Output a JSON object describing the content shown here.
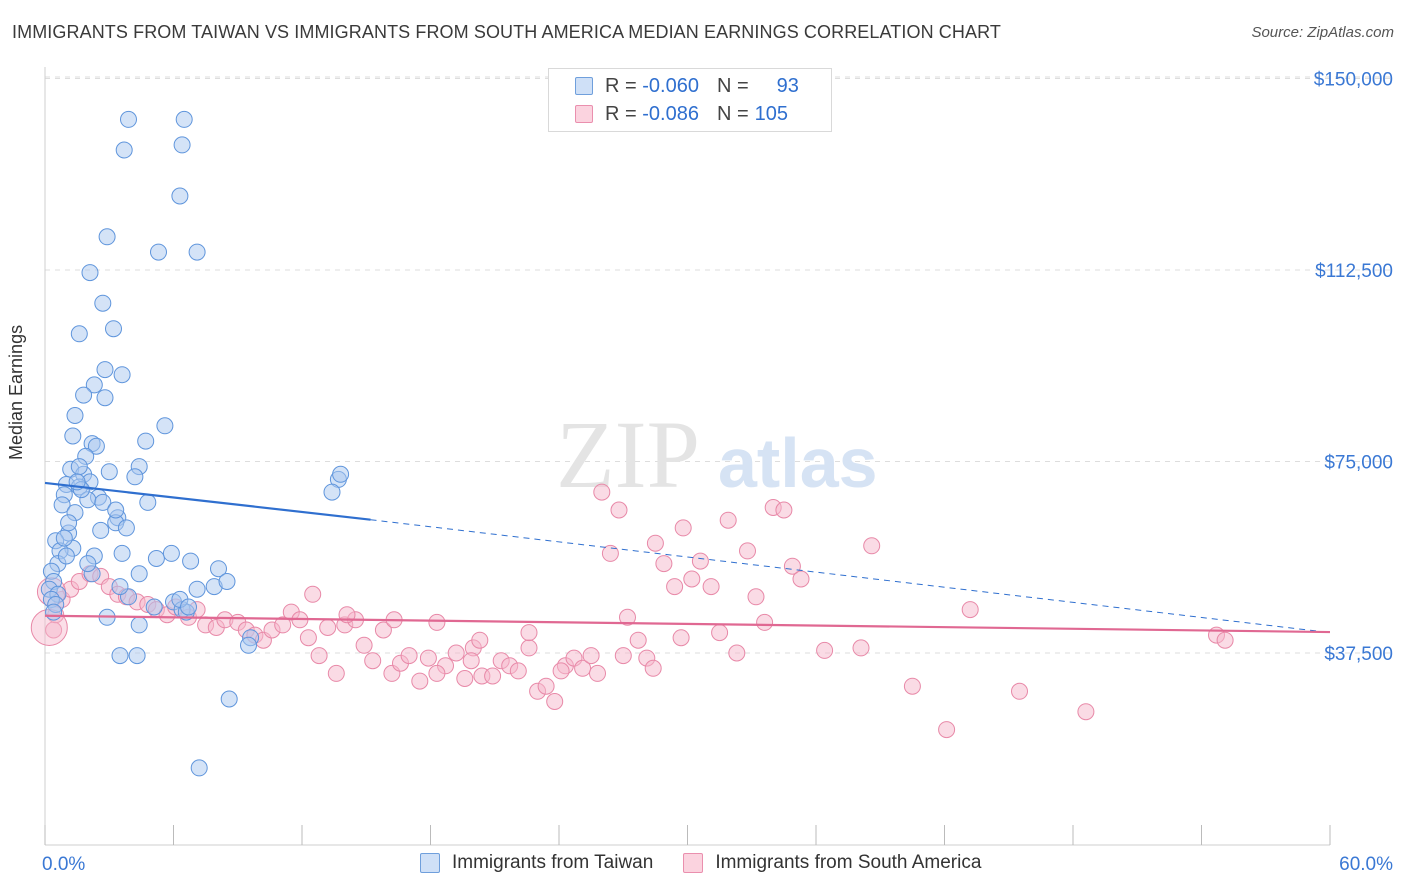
{
  "header": {
    "title": "IMMIGRANTS FROM TAIWAN VS IMMIGRANTS FROM SOUTH AMERICA MEDIAN EARNINGS CORRELATION CHART",
    "source": "Source: ZipAtlas.com"
  },
  "legend": {
    "rows": [
      {
        "r_label": "R =",
        "r_value": "-0.060",
        "n_label": "N =",
        "n_value": "93",
        "color": "#a9c8f0"
      },
      {
        "r_label": "R =",
        "r_value": "-0.086",
        "n_label": "N =",
        "n_value": "105",
        "color": "#f6b8cb"
      }
    ]
  },
  "watermark": {
    "zip": "ZIP",
    "atlas": "atlas"
  },
  "colors": {
    "taiwan_fill": "#a9c8f0",
    "taiwan_stroke": "#5f95dc",
    "taiwan_line": "#2f6fcf",
    "sa_fill": "#f6b8cb",
    "sa_stroke": "#e889a8",
    "sa_line": "#e06892",
    "axis_text": "#3a78d4"
  },
  "chart_data": {
    "type": "scatter",
    "title": "IMMIGRANTS FROM TAIWAN VS IMMIGRANTS FROM SOUTH AMERICA MEDIAN EARNINGS CORRELATION CHART",
    "xlabel": "",
    "ylabel": "Median Earnings",
    "xlim": [
      0,
      60
    ],
    "ylim": [
      0,
      155000
    ],
    "x_tick_labels": [
      "0.0%",
      "60.0%"
    ],
    "y_ticks": [
      37500,
      75000,
      112500,
      150000
    ],
    "y_tick_labels": [
      "$37,500",
      "$75,000",
      "$112,500",
      "$150,000"
    ],
    "grid": true,
    "series": [
      {
        "name": "Immigrants from Taiwan",
        "r": -0.06,
        "n": 93,
        "trend": {
          "x0": 0,
          "y0": 70800,
          "x1": 15.2,
          "y1": 63600,
          "dash_to_x": 60,
          "dash_to_y": 41500
        },
        "points": [
          [
            3.9,
            142000
          ],
          [
            6.4,
            137000
          ],
          [
            6.5,
            142000
          ],
          [
            3.7,
            136000
          ],
          [
            6.3,
            127000
          ],
          [
            2.9,
            119000
          ],
          [
            5.3,
            116000
          ],
          [
            7.1,
            116000
          ],
          [
            2.1,
            112000
          ],
          [
            2.7,
            106000
          ],
          [
            3.2,
            101000
          ],
          [
            1.6,
            100000
          ],
          [
            2.8,
            93000
          ],
          [
            3.6,
            92000
          ],
          [
            2.3,
            90000
          ],
          [
            1.8,
            88000
          ],
          [
            2.8,
            87500
          ],
          [
            1.4,
            84000
          ],
          [
            5.6,
            82000
          ],
          [
            1.3,
            80000
          ],
          [
            2.2,
            78500
          ],
          [
            2.4,
            78000
          ],
          [
            4.7,
            79000
          ],
          [
            1.9,
            76000
          ],
          [
            4.4,
            74000
          ],
          [
            3.0,
            73000
          ],
          [
            1.2,
            73500
          ],
          [
            1.8,
            72500
          ],
          [
            2.1,
            71000
          ],
          [
            1.0,
            70500
          ],
          [
            1.6,
            70000
          ],
          [
            0.9,
            68500
          ],
          [
            2.5,
            68000
          ],
          [
            2.0,
            67500
          ],
          [
            0.8,
            66500
          ],
          [
            4.8,
            67000
          ],
          [
            1.4,
            65000
          ],
          [
            3.4,
            64000
          ],
          [
            3.3,
            63000
          ],
          [
            3.8,
            62000
          ],
          [
            2.6,
            61500
          ],
          [
            1.1,
            61000
          ],
          [
            0.5,
            59500
          ],
          [
            1.3,
            58000
          ],
          [
            0.7,
            57500
          ],
          [
            2.3,
            56500
          ],
          [
            5.2,
            56000
          ],
          [
            6.8,
            55500
          ],
          [
            0.6,
            55000
          ],
          [
            8.1,
            54000
          ],
          [
            0.3,
            53500
          ],
          [
            4.4,
            53000
          ],
          [
            0.4,
            51500
          ],
          [
            7.9,
            50500
          ],
          [
            0.2,
            50000
          ],
          [
            0.6,
            49000
          ],
          [
            3.9,
            48500
          ],
          [
            0.3,
            48000
          ],
          [
            7.1,
            50000
          ],
          [
            6.0,
            47500
          ],
          [
            6.4,
            46000
          ],
          [
            6.6,
            45500
          ],
          [
            2.9,
            44500
          ],
          [
            4.4,
            43000
          ],
          [
            9.6,
            40500
          ],
          [
            3.5,
            37000
          ],
          [
            4.3,
            37000
          ],
          [
            9.5,
            39000
          ],
          [
            8.6,
            28500
          ],
          [
            7.2,
            15000
          ],
          [
            13.7,
            71500
          ],
          [
            13.4,
            69000
          ],
          [
            13.8,
            72500
          ],
          [
            1.0,
            56500
          ],
          [
            0.5,
            47000
          ],
          [
            2.2,
            53000
          ],
          [
            3.5,
            50500
          ],
          [
            5.1,
            46500
          ],
          [
            8.5,
            51500
          ],
          [
            1.6,
            74000
          ],
          [
            6.3,
            48000
          ],
          [
            1.1,
            63000
          ],
          [
            2.7,
            67000
          ],
          [
            0.9,
            60000
          ],
          [
            4.2,
            72000
          ],
          [
            1.7,
            69500
          ],
          [
            3.3,
            65500
          ],
          [
            0.4,
            45500
          ],
          [
            2.0,
            55000
          ],
          [
            5.9,
            57000
          ],
          [
            1.5,
            71000
          ],
          [
            6.7,
            46500
          ],
          [
            3.6,
            57000
          ]
        ]
      },
      {
        "name": "Immigrants from South America",
        "r": -0.086,
        "n": 105,
        "trend": {
          "x0": 0,
          "y0": 44800,
          "x1": 60,
          "y1": 41600
        },
        "points": [
          [
            0.4,
            42000
          ],
          [
            0.5,
            45000
          ],
          [
            0.8,
            48000
          ],
          [
            1.2,
            50000
          ],
          [
            1.6,
            51500
          ],
          [
            2.1,
            53000
          ],
          [
            2.6,
            52500
          ],
          [
            3.0,
            50500
          ],
          [
            3.4,
            49000
          ],
          [
            3.8,
            48500
          ],
          [
            4.3,
            47500
          ],
          [
            4.8,
            47000
          ],
          [
            5.2,
            46000
          ],
          [
            5.7,
            45000
          ],
          [
            6.1,
            46500
          ],
          [
            6.7,
            44500
          ],
          [
            7.1,
            46000
          ],
          [
            7.5,
            43000
          ],
          [
            8.0,
            42500
          ],
          [
            8.4,
            44000
          ],
          [
            9.0,
            43500
          ],
          [
            9.4,
            42000
          ],
          [
            9.8,
            41000
          ],
          [
            10.2,
            40000
          ],
          [
            10.6,
            42000
          ],
          [
            11.1,
            43000
          ],
          [
            11.5,
            45500
          ],
          [
            11.9,
            44000
          ],
          [
            12.3,
            40500
          ],
          [
            12.8,
            37000
          ],
          [
            13.2,
            42500
          ],
          [
            13.6,
            33500
          ],
          [
            14.0,
            43000
          ],
          [
            14.5,
            44000
          ],
          [
            14.9,
            39000
          ],
          [
            15.3,
            36000
          ],
          [
            15.8,
            42000
          ],
          [
            16.2,
            33500
          ],
          [
            16.6,
            35500
          ],
          [
            17.0,
            37000
          ],
          [
            17.5,
            32000
          ],
          [
            17.9,
            36500
          ],
          [
            18.3,
            43500
          ],
          [
            18.7,
            35000
          ],
          [
            19.2,
            37500
          ],
          [
            19.6,
            32500
          ],
          [
            20.0,
            38500
          ],
          [
            20.4,
            33000
          ],
          [
            20.9,
            33000
          ],
          [
            21.3,
            36000
          ],
          [
            21.7,
            35000
          ],
          [
            22.1,
            34000
          ],
          [
            22.6,
            38500
          ],
          [
            23.0,
            30000
          ],
          [
            23.4,
            31000
          ],
          [
            23.8,
            28000
          ],
          [
            24.3,
            35000
          ],
          [
            24.7,
            36500
          ],
          [
            25.1,
            34500
          ],
          [
            25.5,
            37000
          ],
          [
            26.0,
            69000
          ],
          [
            26.4,
            57000
          ],
          [
            26.8,
            65500
          ],
          [
            27.2,
            44500
          ],
          [
            27.7,
            40000
          ],
          [
            28.1,
            36500
          ],
          [
            28.5,
            59000
          ],
          [
            28.9,
            55000
          ],
          [
            29.4,
            50500
          ],
          [
            29.8,
            62000
          ],
          [
            30.2,
            52000
          ],
          [
            30.6,
            55500
          ],
          [
            31.1,
            50500
          ],
          [
            31.5,
            41500
          ],
          [
            31.9,
            63500
          ],
          [
            32.3,
            37500
          ],
          [
            32.8,
            57500
          ],
          [
            33.2,
            48500
          ],
          [
            33.6,
            43500
          ],
          [
            34.0,
            66000
          ],
          [
            34.5,
            65500
          ],
          [
            34.9,
            54500
          ],
          [
            35.3,
            52000
          ],
          [
            36.4,
            38000
          ],
          [
            38.1,
            38500
          ],
          [
            38.6,
            58500
          ],
          [
            40.5,
            31000
          ],
          [
            42.1,
            22500
          ],
          [
            43.2,
            46000
          ],
          [
            45.5,
            30000
          ],
          [
            48.6,
            26000
          ],
          [
            54.7,
            41000
          ],
          [
            55.1,
            40000
          ],
          [
            12.5,
            49000
          ],
          [
            14.1,
            45000
          ],
          [
            16.3,
            44000
          ],
          [
            18.3,
            33500
          ],
          [
            19.9,
            36000
          ],
          [
            20.3,
            40000
          ],
          [
            22.6,
            41500
          ],
          [
            24.1,
            34000
          ],
          [
            25.8,
            33500
          ],
          [
            27.0,
            37000
          ],
          [
            28.4,
            34500
          ],
          [
            29.7,
            40500
          ]
        ]
      }
    ]
  },
  "bottom_legend": {
    "items": [
      {
        "label": "Immigrants from Taiwan",
        "color": "#a9c8f0"
      },
      {
        "label": "Immigrants from South America",
        "color": "#f6b8cb"
      }
    ]
  }
}
